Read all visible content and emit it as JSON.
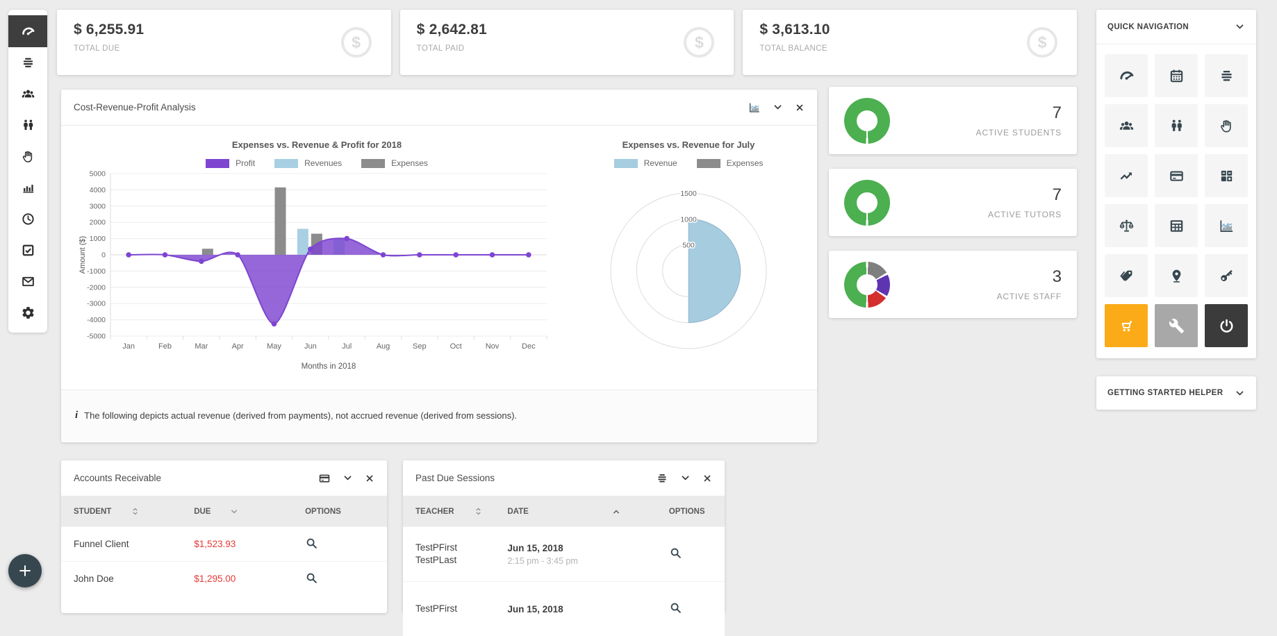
{
  "colors": {
    "accent_purple": "#7e45d1",
    "accent_blue": "#a8cfe2",
    "accent_gray": "#8c8c8c",
    "green": "#4caf50",
    "red": "#e53935",
    "orange": "#fbab18",
    "dark": "#3b3b3b",
    "sidebar_active_bg": "#3e3e3e",
    "fab_bg": "#37474f"
  },
  "sidebar": {
    "items": [
      {
        "icon": "gauge",
        "active": true
      },
      {
        "icon": "list",
        "active": false
      },
      {
        "icon": "users",
        "active": false
      },
      {
        "icon": "two-users",
        "active": false
      },
      {
        "icon": "hand",
        "active": false
      },
      {
        "icon": "bar-chart",
        "active": false
      },
      {
        "icon": "clock",
        "active": false
      },
      {
        "icon": "check-square",
        "active": false
      },
      {
        "icon": "envelope",
        "active": false
      },
      {
        "icon": "gear",
        "active": false
      }
    ]
  },
  "stats": [
    {
      "value": "$ 6,255.91",
      "label": "TOTAL DUE",
      "icon": "dollar-circle"
    },
    {
      "value": "$ 2,642.81",
      "label": "TOTAL PAID",
      "icon": "dollar-circle"
    },
    {
      "value": "$ 3,613.10",
      "label": "TOTAL BALANCE",
      "icon": "dollar-circle"
    }
  ],
  "analysis_panel": {
    "title": "Cost-Revenue-Profit Analysis",
    "header_icons": [
      "area-chart",
      "chevron-down",
      "close"
    ],
    "note": "The following depicts actual revenue (derived from payments), not accrued revenue (derived from sessions)."
  },
  "chart_data": [
    {
      "type": "bar",
      "subtype": "combo bar + smoothed area line",
      "title": "Expenses vs. Revenue & Profit for 2018",
      "xlabel": "Months in 2018",
      "ylabel": "Amount ($)",
      "ylim": [
        -5000,
        5000
      ],
      "ytick_step": 1000,
      "grid": true,
      "legend_position": "top",
      "categories": [
        "Jan",
        "Feb",
        "Mar",
        "Apr",
        "May",
        "Jun",
        "Jul",
        "Aug",
        "Sep",
        "Oct",
        "Nov",
        "Dec"
      ],
      "series": [
        {
          "name": "Profit",
          "type": "line-area",
          "color": "#7e45d1",
          "values": [
            0,
            0,
            -400,
            0,
            -4250,
            350,
            1000,
            0,
            0,
            0,
            0,
            0
          ]
        },
        {
          "name": "Revenues",
          "type": "bar",
          "color": "#a8cfe2",
          "values": [
            0,
            0,
            0,
            0,
            0,
            1600,
            1000,
            0,
            0,
            0,
            0,
            0
          ]
        },
        {
          "name": "Expenses",
          "type": "bar",
          "color": "#8c8c8c",
          "values": [
            0,
            0,
            375,
            0,
            4150,
            1300,
            0,
            0,
            0,
            0,
            0,
            0
          ]
        }
      ]
    },
    {
      "type": "pie",
      "subtype": "polar-area",
      "title": "Expenses vs. Revenue for July",
      "rings": [
        500,
        1000,
        1500
      ],
      "rmax": 1500,
      "legend_position": "top",
      "series": [
        {
          "name": "Revenue",
          "color": "#a6cce0",
          "value": 1000
        },
        {
          "name": "Expenses",
          "color": "#8c8c8c",
          "value": 0
        }
      ]
    }
  ],
  "kpis": [
    {
      "value": "7",
      "label": "ACTIVE STUDENTS",
      "donut": {
        "from_deg": 180,
        "slices": [
          {
            "color": "#4caf50",
            "pct": 100
          }
        ]
      }
    },
    {
      "value": "7",
      "label": "ACTIVE TUTORS",
      "donut": {
        "from_deg": 180,
        "slices": [
          {
            "color": "#4caf50",
            "pct": 100
          }
        ]
      }
    },
    {
      "value": "3",
      "label": "ACTIVE STAFF",
      "donut": {
        "from_deg": 0,
        "slices": [
          {
            "color": "#7f7f7f",
            "pct": 17
          },
          {
            "color": "#5e35b1",
            "pct": 17
          },
          {
            "color": "#d32f2f",
            "pct": 16
          },
          {
            "color": "#4caf50",
            "pct": 50
          }
        ]
      }
    }
  ],
  "quick_nav": {
    "title": "QUICK NAVIGATION",
    "items": [
      {
        "icon": "gauge"
      },
      {
        "icon": "calendar"
      },
      {
        "icon": "list"
      },
      {
        "icon": "users"
      },
      {
        "icon": "two-users"
      },
      {
        "icon": "hand"
      },
      {
        "icon": "trend-up"
      },
      {
        "icon": "credit-card"
      },
      {
        "icon": "calculator"
      },
      {
        "icon": "scales"
      },
      {
        "icon": "table"
      },
      {
        "icon": "area-chart"
      },
      {
        "icon": "tag"
      },
      {
        "icon": "map-pin"
      },
      {
        "icon": "key"
      },
      {
        "icon": "cart",
        "bg": "#fbab18",
        "fg": "#ffffff"
      },
      {
        "icon": "wrench",
        "bg": "#a8a8a8",
        "fg": "#ffffff"
      },
      {
        "icon": "power",
        "bg": "#3b3b3b",
        "fg": "#ffffff"
      }
    ]
  },
  "getting_started": {
    "title": "GETTING STARTED HELPER"
  },
  "accounts_receivable": {
    "title": "Accounts Receivable",
    "header_icons": [
      "credit-card",
      "chevron-down",
      "close"
    ],
    "columns": [
      "STUDENT",
      "DUE",
      "OPTIONS"
    ],
    "sort": {
      "student": "both",
      "due": "down"
    },
    "rows": [
      {
        "student": "Funnel Client",
        "due": "$1,523.93"
      },
      {
        "student": "John Doe",
        "due": "$1,295.00"
      }
    ]
  },
  "past_due_sessions": {
    "title": "Past Due Sessions",
    "header_icons": [
      "list",
      "chevron-down",
      "close"
    ],
    "columns": [
      "TEACHER",
      "DATE",
      "OPTIONS"
    ],
    "sort": {
      "teacher": "both",
      "date": "up"
    },
    "rows": [
      {
        "teacher_lines": [
          "TestPFirst",
          "TestPLast"
        ],
        "date": "Jun 15, 2018",
        "time": "2:15 pm - 3:45 pm"
      },
      {
        "teacher_lines": [
          "TestPFirst"
        ],
        "date": "Jun 15, 2018",
        "time": ""
      }
    ]
  },
  "fab": {
    "icon": "plus"
  }
}
